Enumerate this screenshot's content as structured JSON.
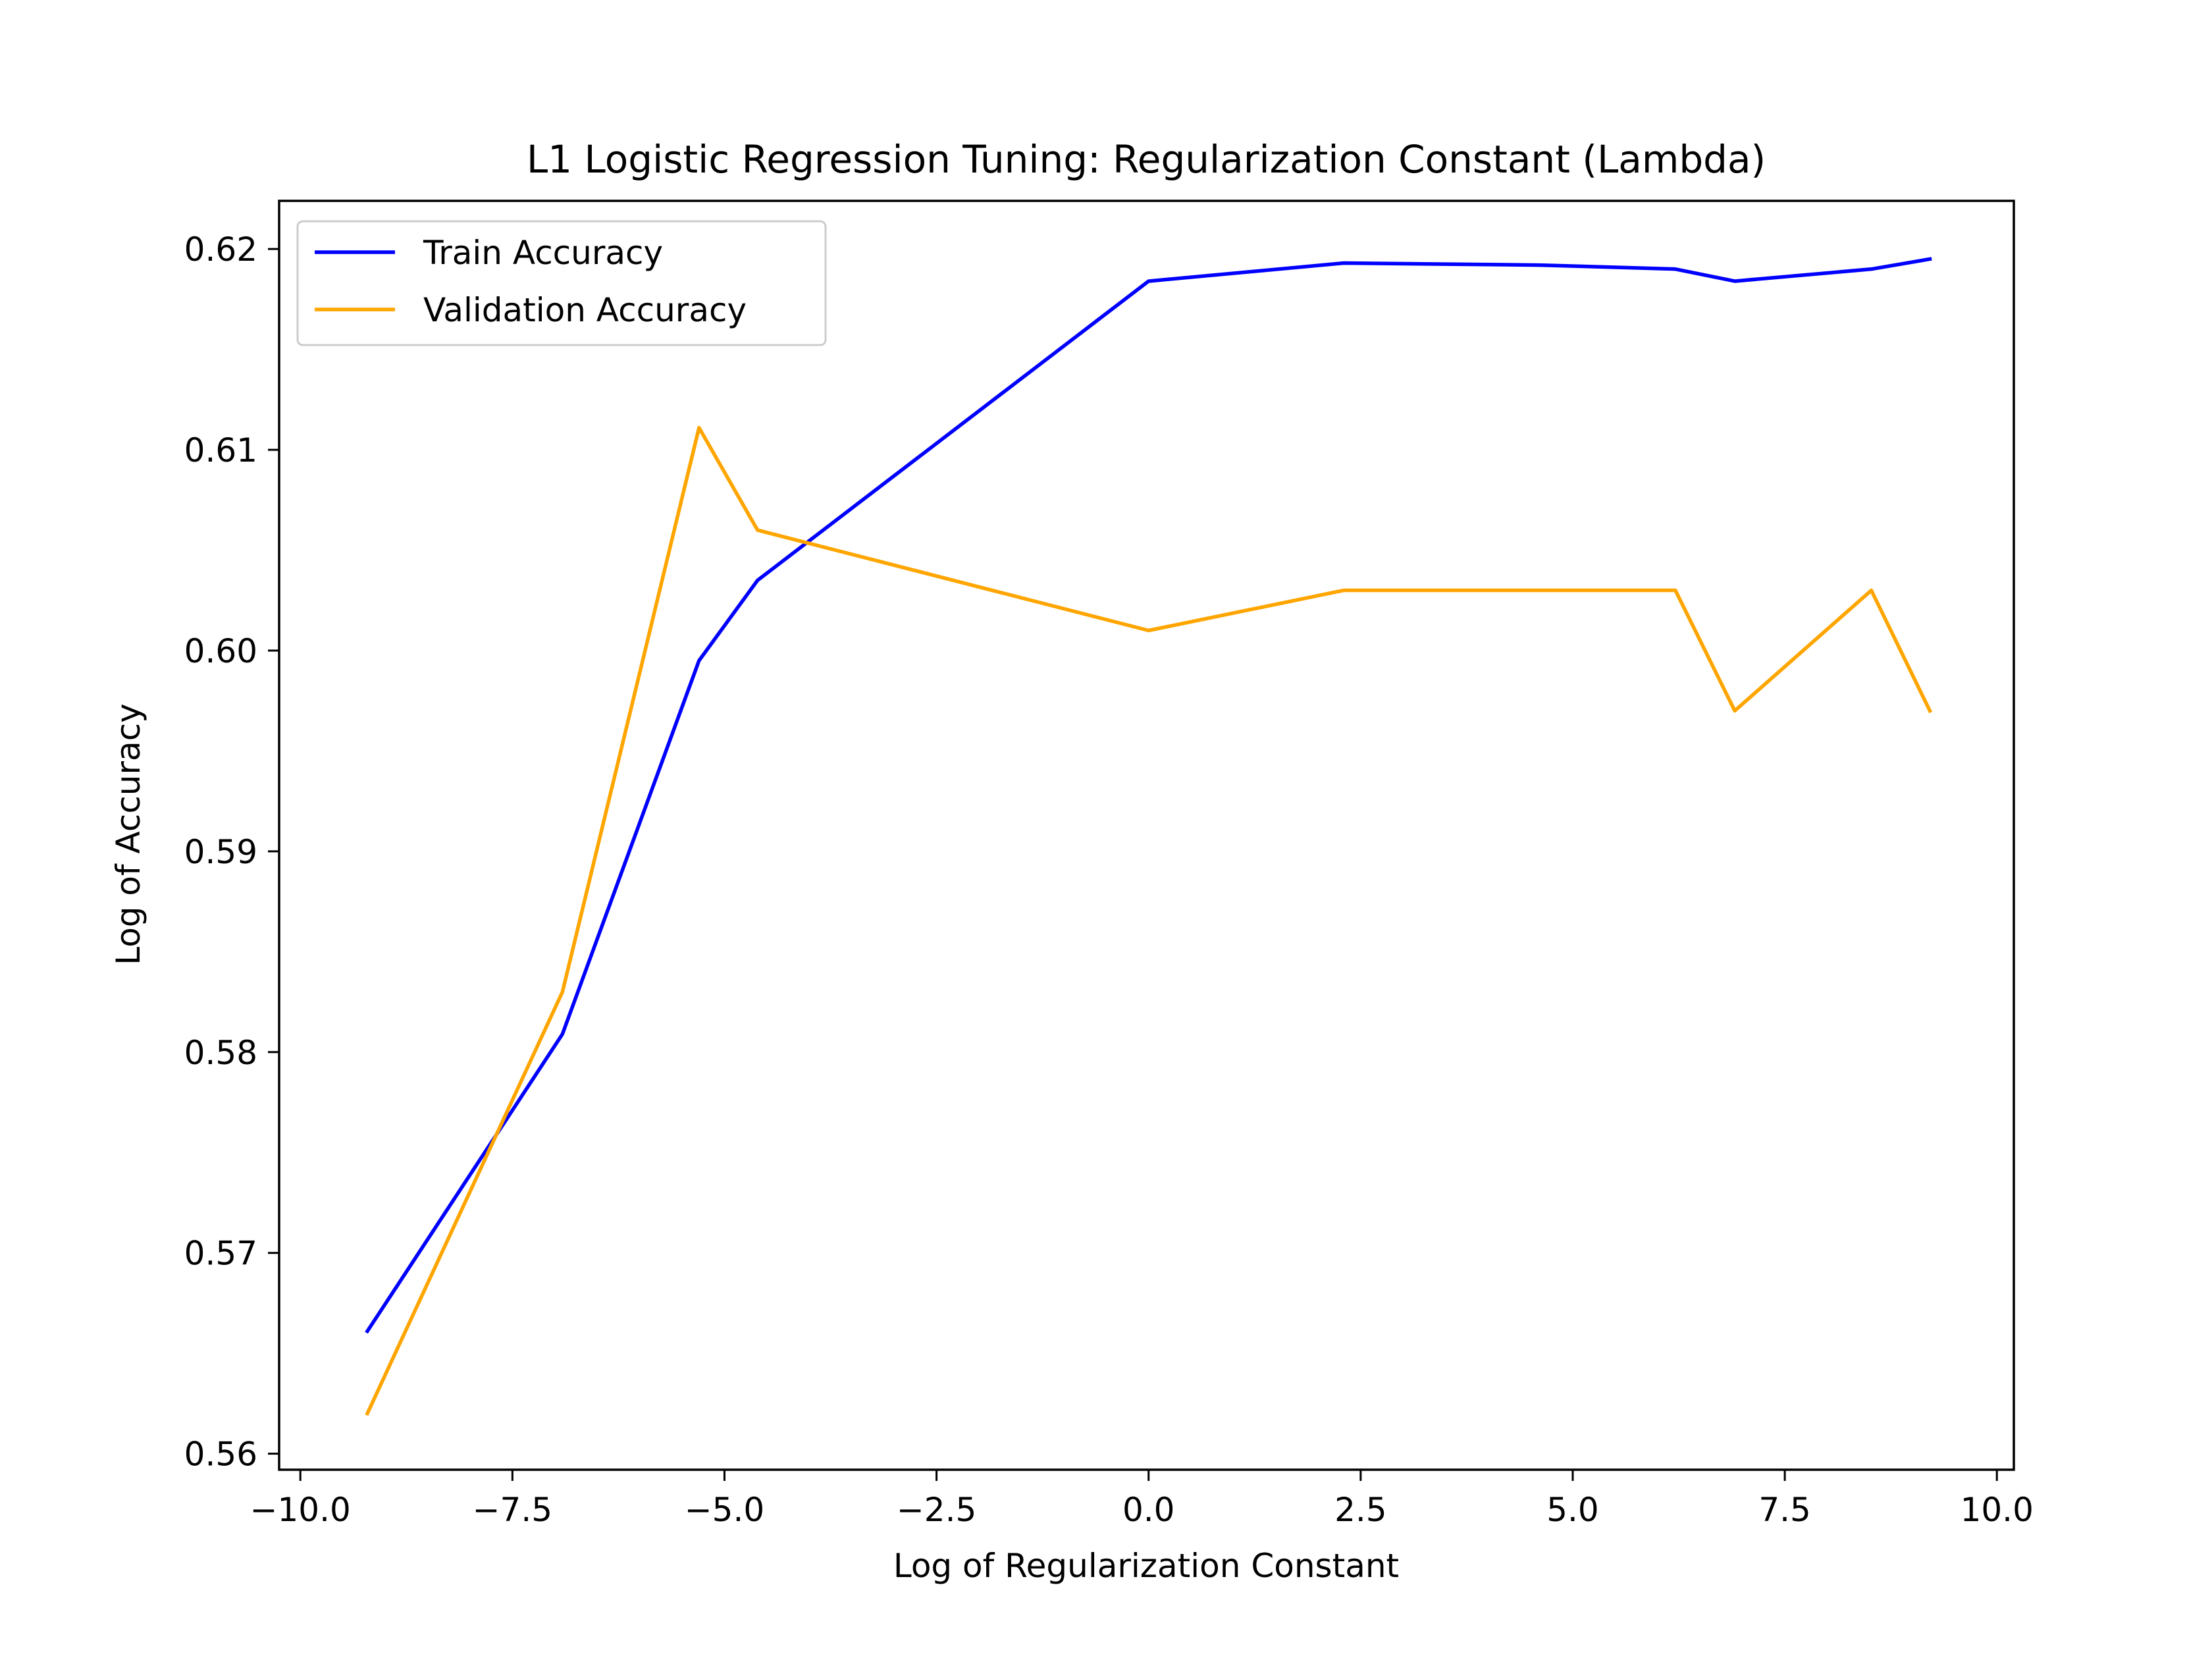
{
  "chart_data": {
    "type": "line",
    "title": "L1 Logistic Regression Tuning: Regularization Constant (Lambda)",
    "xlabel": "Log of Regularization Constant",
    "ylabel": "Log of Accuracy",
    "xlim": [
      -10.25,
      10.2
    ],
    "ylim": [
      0.5592,
      0.6224
    ],
    "grid": false,
    "legend_position": "upper-left",
    "x_ticks": [
      -10.0,
      -7.5,
      -5.0,
      -2.5,
      0.0,
      2.5,
      5.0,
      7.5,
      10.0
    ],
    "x_tick_labels": [
      "−10.0",
      "−7.5",
      "−5.0",
      "−2.5",
      "0.0",
      "2.5",
      "5.0",
      "7.5",
      "10.0"
    ],
    "y_ticks": [
      0.56,
      0.57,
      0.58,
      0.59,
      0.6,
      0.61,
      0.62
    ],
    "y_tick_labels": [
      "0.56",
      "0.57",
      "0.58",
      "0.59",
      "0.60",
      "0.61",
      "0.62"
    ],
    "x": [
      -9.21,
      -6.91,
      -5.3,
      -4.61,
      0.0,
      2.3,
      4.61,
      6.21,
      6.91,
      8.52,
      9.21
    ],
    "series": [
      {
        "name": "Train Accuracy",
        "color": "#0000ff",
        "values": [
          0.5661,
          0.5809,
          0.5995,
          0.6035,
          0.6184,
          0.6193,
          0.6192,
          0.619,
          0.6184,
          0.619,
          0.6195
        ]
      },
      {
        "name": "Validation Accuracy",
        "color": "#ffa500",
        "values": [
          0.562,
          0.583,
          0.6111,
          0.606,
          0.601,
          0.603,
          0.603,
          0.603,
          0.597,
          0.603,
          0.597
        ]
      }
    ]
  }
}
